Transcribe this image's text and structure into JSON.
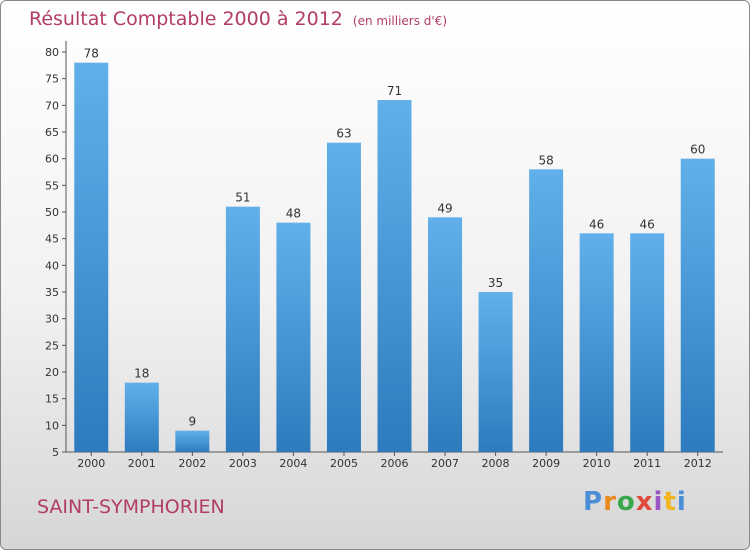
{
  "title": "Résultat Comptable 2000 à 2012",
  "unit": "(en milliers d'€)",
  "place": "SAINT-SYMPHORIEN",
  "logo": {
    "letters": [
      "P",
      "r",
      "o",
      "x",
      "i",
      "t",
      "i"
    ],
    "colors": [
      "#4a8fd6",
      "#e98a1f",
      "#3aa84a",
      "#e04a3a",
      "#9a55c4",
      "#f2b51d",
      "#4a8fd6"
    ]
  },
  "colors": {
    "bar_top": "#62b0ea",
    "bar_bottom": "#2d7bbd",
    "accent": "#b23c68"
  },
  "chart_data": {
    "type": "bar",
    "categories": [
      "2000",
      "2001",
      "2002",
      "2003",
      "2004",
      "2005",
      "2006",
      "2007",
      "2008",
      "2009",
      "2010",
      "2011",
      "2012"
    ],
    "values": [
      78,
      18,
      9,
      51,
      48,
      63,
      71,
      49,
      35,
      58,
      46,
      46,
      60
    ],
    "ylim": [
      5,
      80
    ],
    "yticks": [
      5,
      10,
      15,
      20,
      25,
      30,
      35,
      40,
      45,
      50,
      55,
      60,
      65,
      70,
      75,
      80
    ],
    "grid": false,
    "xlabel": "",
    "ylabel": ""
  }
}
